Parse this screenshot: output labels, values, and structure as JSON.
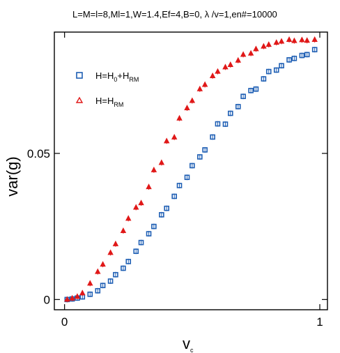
{
  "chart_data": {
    "type": "scatter",
    "title": "L=M=l=8,Ml=1,W=1.4,Ef=4,B=0, λ /v=1,en#=10000",
    "xlabel": "v",
    "xlabel_sub": "c",
    "ylabel": "var(g)",
    "xlim": [
      -0.04,
      1.03
    ],
    "ylim": [
      -0.0035,
      0.0915
    ],
    "x_ticks": [
      0,
      1
    ],
    "x_tick_labels": [
      "0",
      "1"
    ],
    "y_ticks": [
      0,
      0.05
    ],
    "y_tick_labels": [
      "0",
      "0.05"
    ],
    "grid": false,
    "legend_position": "top-left",
    "series": [
      {
        "name": "H=H0+HRM",
        "legend_main": "H=H",
        "legend_sub1": "0",
        "legend_mid": "+H",
        "legend_sub2": "RM",
        "marker": "square",
        "color": "#1f5fb4",
        "x": [
          0.01,
          0.03,
          0.05,
          0.07,
          0.1,
          0.13,
          0.15,
          0.18,
          0.2,
          0.23,
          0.25,
          0.28,
          0.3,
          0.33,
          0.35,
          0.38,
          0.4,
          0.43,
          0.45,
          0.48,
          0.5,
          0.53,
          0.55,
          0.58,
          0.6,
          0.63,
          0.65,
          0.68,
          0.7,
          0.73,
          0.75,
          0.78,
          0.8,
          0.83,
          0.85,
          0.88,
          0.9,
          0.93,
          0.95,
          0.98
        ],
        "y": [
          0.0,
          0.0002,
          0.0005,
          0.0009,
          0.0018,
          0.003,
          0.0048,
          0.0063,
          0.0085,
          0.0107,
          0.013,
          0.0165,
          0.0195,
          0.0225,
          0.025,
          0.029,
          0.0312,
          0.0353,
          0.039,
          0.0418,
          0.0458,
          0.0488,
          0.0512,
          0.0556,
          0.0601,
          0.06,
          0.0637,
          0.066,
          0.0695,
          0.0715,
          0.072,
          0.0755,
          0.078,
          0.0785,
          0.08,
          0.082,
          0.0825,
          0.0835,
          0.0838,
          0.0855
        ]
      },
      {
        "name": "H=HRM",
        "legend_main": "H=H",
        "legend_sub1": "RM",
        "marker": "triangle",
        "color": "#e01818",
        "x": [
          0.01,
          0.03,
          0.05,
          0.07,
          0.1,
          0.13,
          0.15,
          0.18,
          0.2,
          0.23,
          0.25,
          0.28,
          0.3,
          0.33,
          0.35,
          0.38,
          0.4,
          0.43,
          0.45,
          0.48,
          0.5,
          0.53,
          0.55,
          0.58,
          0.6,
          0.63,
          0.65,
          0.68,
          0.7,
          0.73,
          0.75,
          0.78,
          0.8,
          0.83,
          0.85,
          0.88,
          0.9,
          0.93,
          0.95,
          0.98
        ],
        "y": [
          0.0,
          0.0004,
          0.001,
          0.0022,
          0.0055,
          0.0095,
          0.012,
          0.016,
          0.019,
          0.0235,
          0.0277,
          0.0315,
          0.033,
          0.0385,
          0.0443,
          0.0468,
          0.0542,
          0.0555,
          0.062,
          0.0655,
          0.068,
          0.072,
          0.0735,
          0.0765,
          0.078,
          0.0795,
          0.0803,
          0.0818,
          0.0838,
          0.0842,
          0.0857,
          0.0866,
          0.0872,
          0.0879,
          0.0883,
          0.0889,
          0.0885,
          0.0888,
          0.0886,
          0.0889
        ]
      }
    ]
  }
}
